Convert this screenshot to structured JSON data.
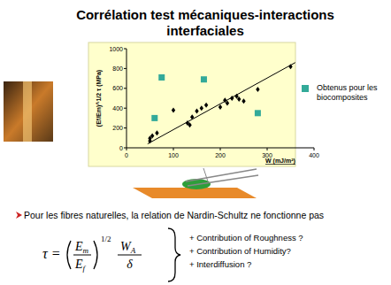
{
  "title": [
    "Corrélation test mécaniques-interactions",
    "interfaciales"
  ],
  "chart_data": {
    "type": "scatter",
    "xlabel": "W  (mJ/m²)",
    "ylabel": "(Ef/Em)^1/2 τ (MPa)",
    "xlim": [
      0,
      400
    ],
    "ylim": [
      0,
      1000
    ],
    "xticks": [
      0,
      100,
      200,
      300,
      400
    ],
    "yticks": [
      0,
      200,
      400,
      600,
      800,
      1000
    ],
    "legend": "right",
    "series": [
      {
        "color": "#000000",
        "marker": "diamond",
        "x": [
          50,
          50,
          55,
          65,
          100,
          130,
          135,
          140,
          150,
          160,
          170,
          200,
          210,
          215,
          225,
          235,
          240,
          250,
          280,
          350
        ],
        "values": [
          70,
          95,
          120,
          150,
          380,
          250,
          230,
          310,
          370,
          400,
          430,
          410,
          480,
          450,
          500,
          520,
          490,
          470,
          590,
          820
        ]
      },
      {
        "name": "Obtenus pour les biocomposites",
        "color": "#33aa99",
        "marker": "square",
        "x": [
          60,
          75,
          165,
          280
        ],
        "values": [
          300,
          710,
          690,
          350
        ]
      },
      {
        "type": "line",
        "color": "#000000",
        "line_style": "solid",
        "x": [
          45,
          360
        ],
        "values": [
          40,
          860
        ]
      }
    ]
  },
  "note": "Pour les fibres naturelles, la relation de Nardin-Schultz ne fonctionne pas",
  "formula": {
    "lhs": "τ =",
    "ratio_num": "Em",
    "ratio_den": "Ef",
    "exponent": "1/2",
    "num": "WA",
    "den": "δ"
  },
  "bullets": [
    "+ Contribution of Roughness ?",
    "+ Contribution of Humidity?",
    "+ Interdiffusion ?"
  ]
}
